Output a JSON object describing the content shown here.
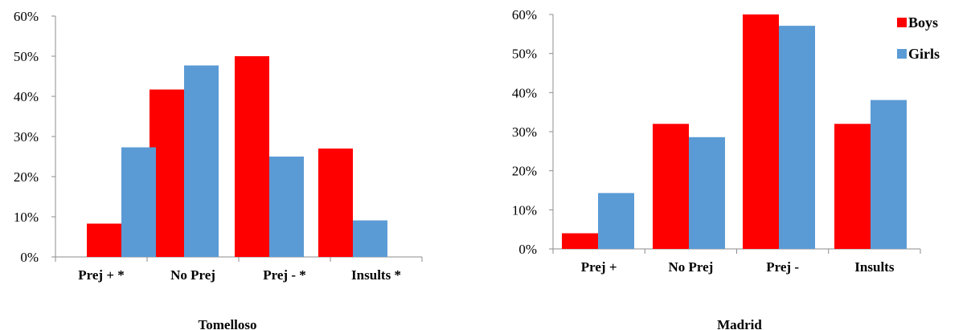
{
  "chart_data": [
    {
      "type": "bar",
      "title": "Tomelloso",
      "categories": [
        "Prej + *",
        "No Prej",
        "Prej - *",
        "Insults *"
      ],
      "series": [
        {
          "name": "Boys",
          "values": [
            8.3,
            41.7,
            50.0,
            27.0
          ],
          "color": "#ff0000"
        },
        {
          "name": "Girls",
          "values": [
            27.3,
            47.7,
            25.0,
            9.1
          ],
          "color": "#5b9bd5"
        }
      ],
      "ylim": [
        0,
        60
      ],
      "yticks": [
        "0%",
        "10%",
        "20%",
        "30%",
        "40%",
        "50%",
        "60%"
      ],
      "legend": false
    },
    {
      "type": "bar",
      "title": "Madrid",
      "categories": [
        "Prej +",
        "No Prej",
        "Prej -",
        "Insults"
      ],
      "series": [
        {
          "name": "Boys",
          "values": [
            4.0,
            32.0,
            60.0,
            32.0
          ],
          "color": "#ff0000"
        },
        {
          "name": "Girls",
          "values": [
            14.3,
            28.6,
            57.1,
            38.1
          ],
          "color": "#5b9bd5"
        }
      ],
      "ylim": [
        0,
        60
      ],
      "yticks": [
        "0%",
        "10%",
        "20%",
        "30%",
        "40%",
        "50%",
        "60%"
      ],
      "legend": "top-right"
    }
  ]
}
